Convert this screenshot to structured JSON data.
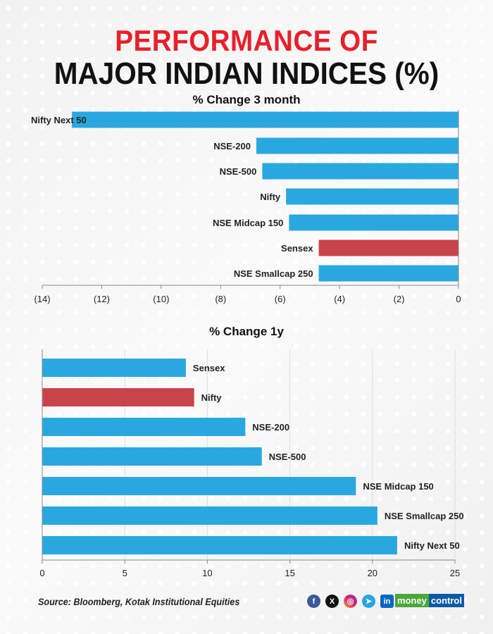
{
  "title_line1": "PERFORMANCE OF",
  "title_line2": "MAJOR INDIAN INDICES (%)",
  "source": "Source: Bloomberg, Kotak Institutional Equities",
  "logo": {
    "part1": "money",
    "part2": "control"
  },
  "social_icons": [
    "facebook-icon",
    "x-icon",
    "instagram-icon",
    "telegram-icon",
    "linkedin-icon"
  ],
  "colors": {
    "bar": "#29a8e0",
    "highlight": "#c9444a",
    "title_red": "#e8202a"
  },
  "chart_data": [
    {
      "type": "bar",
      "orientation": "horizontal",
      "title": "% Change 3 month",
      "categories": [
        "Nifty Next 50",
        "NSE-200",
        "NSE-500",
        "Nifty",
        "NSE Midcap 150",
        "Sensex",
        "NSE Smallcap 250"
      ],
      "values": [
        -13.0,
        -6.8,
        -6.6,
        -5.8,
        -5.7,
        -4.7,
        -4.7
      ],
      "highlight": "Sensex",
      "xlim": [
        -14,
        0
      ],
      "ticks": [
        -14,
        -12,
        -10,
        -8,
        -6,
        -4,
        -2,
        0
      ],
      "tick_labels": [
        "(14)",
        "(12)",
        "(10)",
        "(8)",
        "(6)",
        "(4)",
        "(2)",
        "0"
      ],
      "grid": false
    },
    {
      "type": "bar",
      "orientation": "horizontal",
      "title": "% Change 1y",
      "categories": [
        "Sensex",
        "Nifty",
        "NSE-200",
        "NSE-500",
        "NSE Midcap 150",
        "NSE Smallcap 250",
        "Nifty Next 50"
      ],
      "values": [
        8.7,
        9.2,
        12.3,
        13.3,
        19.0,
        20.3,
        21.5
      ],
      "highlight": "Nifty",
      "xlim": [
        0,
        25
      ],
      "ticks": [
        0,
        5,
        10,
        15,
        20,
        25
      ],
      "tick_labels": [
        "0",
        "5",
        "10",
        "15",
        "20",
        "25"
      ],
      "grid": true
    }
  ]
}
